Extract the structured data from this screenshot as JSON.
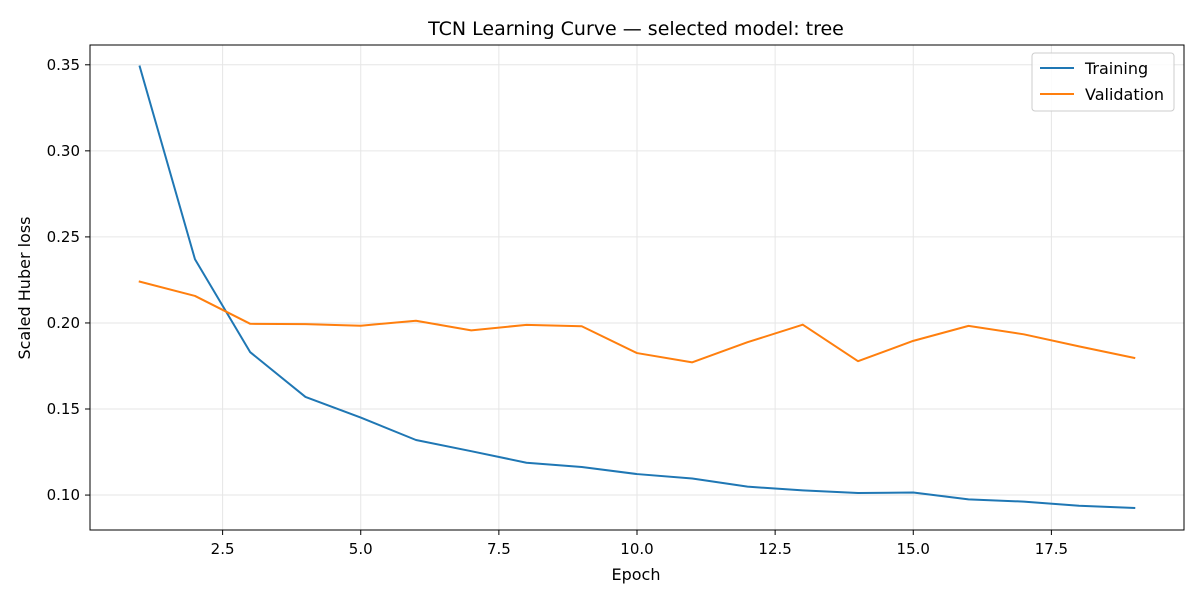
{
  "chart_data": {
    "type": "line",
    "title": "TCN Learning Curve — selected model: tree",
    "xlabel": "Epoch",
    "ylabel": "Scaled Huber loss",
    "xlim": [
      0.1,
      19.9
    ],
    "ylim": [
      0.0797,
      0.3615
    ],
    "x_ticks": [
      2.5,
      5.0,
      7.5,
      10.0,
      12.5,
      15.0,
      17.5
    ],
    "x_tick_labels": [
      "2.5",
      "5.0",
      "7.5",
      "10.0",
      "12.5",
      "15.0",
      "17.5"
    ],
    "y_ticks": [
      0.1,
      0.15,
      0.2,
      0.25,
      0.3,
      0.35
    ],
    "y_tick_labels": [
      "0.10",
      "0.15",
      "0.20",
      "0.25",
      "0.30",
      "0.35"
    ],
    "grid": true,
    "legend_position": "top-right",
    "x": [
      1,
      2,
      3,
      4,
      5,
      6,
      7,
      8,
      9,
      10,
      11,
      12,
      13,
      14,
      15,
      16,
      17,
      18,
      19
    ],
    "series": [
      {
        "name": "Training",
        "color": "#1f77b4",
        "values": [
          0.349,
          0.237,
          0.183,
          0.157,
          0.145,
          0.132,
          0.1255,
          0.1188,
          0.1163,
          0.1122,
          0.1096,
          0.1049,
          0.1027,
          0.1012,
          0.1015,
          0.0975,
          0.0962,
          0.0938,
          0.0925
        ]
      },
      {
        "name": "Validation",
        "color": "#ff7f0e",
        "values": [
          0.224,
          0.2157,
          0.1995,
          0.1993,
          0.1984,
          0.2013,
          0.1957,
          0.1989,
          0.1981,
          0.1825,
          0.1771,
          0.1888,
          0.199,
          0.1778,
          0.1896,
          0.1983,
          0.1934,
          0.1864,
          0.1797
        ]
      }
    ]
  }
}
